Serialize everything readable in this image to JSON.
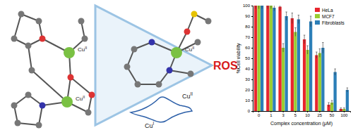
{
  "chart_data": {
    "type": "bar",
    "x_label": "Complex concentration (μM)",
    "y_label": "%Cell viability",
    "categories": [
      "0",
      "1",
      "3",
      "5",
      "10",
      "25",
      "50",
      "100"
    ],
    "series": [
      {
        "name": "HeLa",
        "color": "#e8262e",
        "values": [
          100,
          100,
          99,
          88,
          68,
          53,
          6,
          2
        ],
        "errors": [
          3,
          3,
          4,
          5,
          4,
          3,
          2,
          1
        ]
      },
      {
        "name": "MCF7",
        "color": "#9acd32",
        "values": [
          100,
          100,
          60,
          75,
          58,
          55,
          8,
          2
        ],
        "errors": [
          3,
          3,
          4,
          4,
          4,
          4,
          2,
          1
        ]
      },
      {
        "name": "Fibroblasts",
        "color": "#2c7fb8",
        "values": [
          100,
          98,
          90,
          87,
          85,
          60,
          37,
          20
        ],
        "errors": [
          3,
          3,
          4,
          4,
          5,
          5,
          3,
          2
        ]
      }
    ],
    "ylim": [
      0,
      100
    ],
    "yticks": [
      0,
      10,
      20,
      30,
      40,
      50,
      60,
      70,
      80,
      90,
      100
    ],
    "grid": false,
    "legend": "upper right",
    "annotations": [
      {
        "text": "Cu",
        "sup": "II"
      },
      {
        "text": "Cu",
        "sup": "II"
      },
      {
        "text": "Cu",
        "sup": "II"
      },
      {
        "text": "ROS"
      },
      {
        "text": "Cu",
        "sup": "II"
      },
      {
        "text": "Cu",
        "sup": "I"
      }
    ]
  }
}
